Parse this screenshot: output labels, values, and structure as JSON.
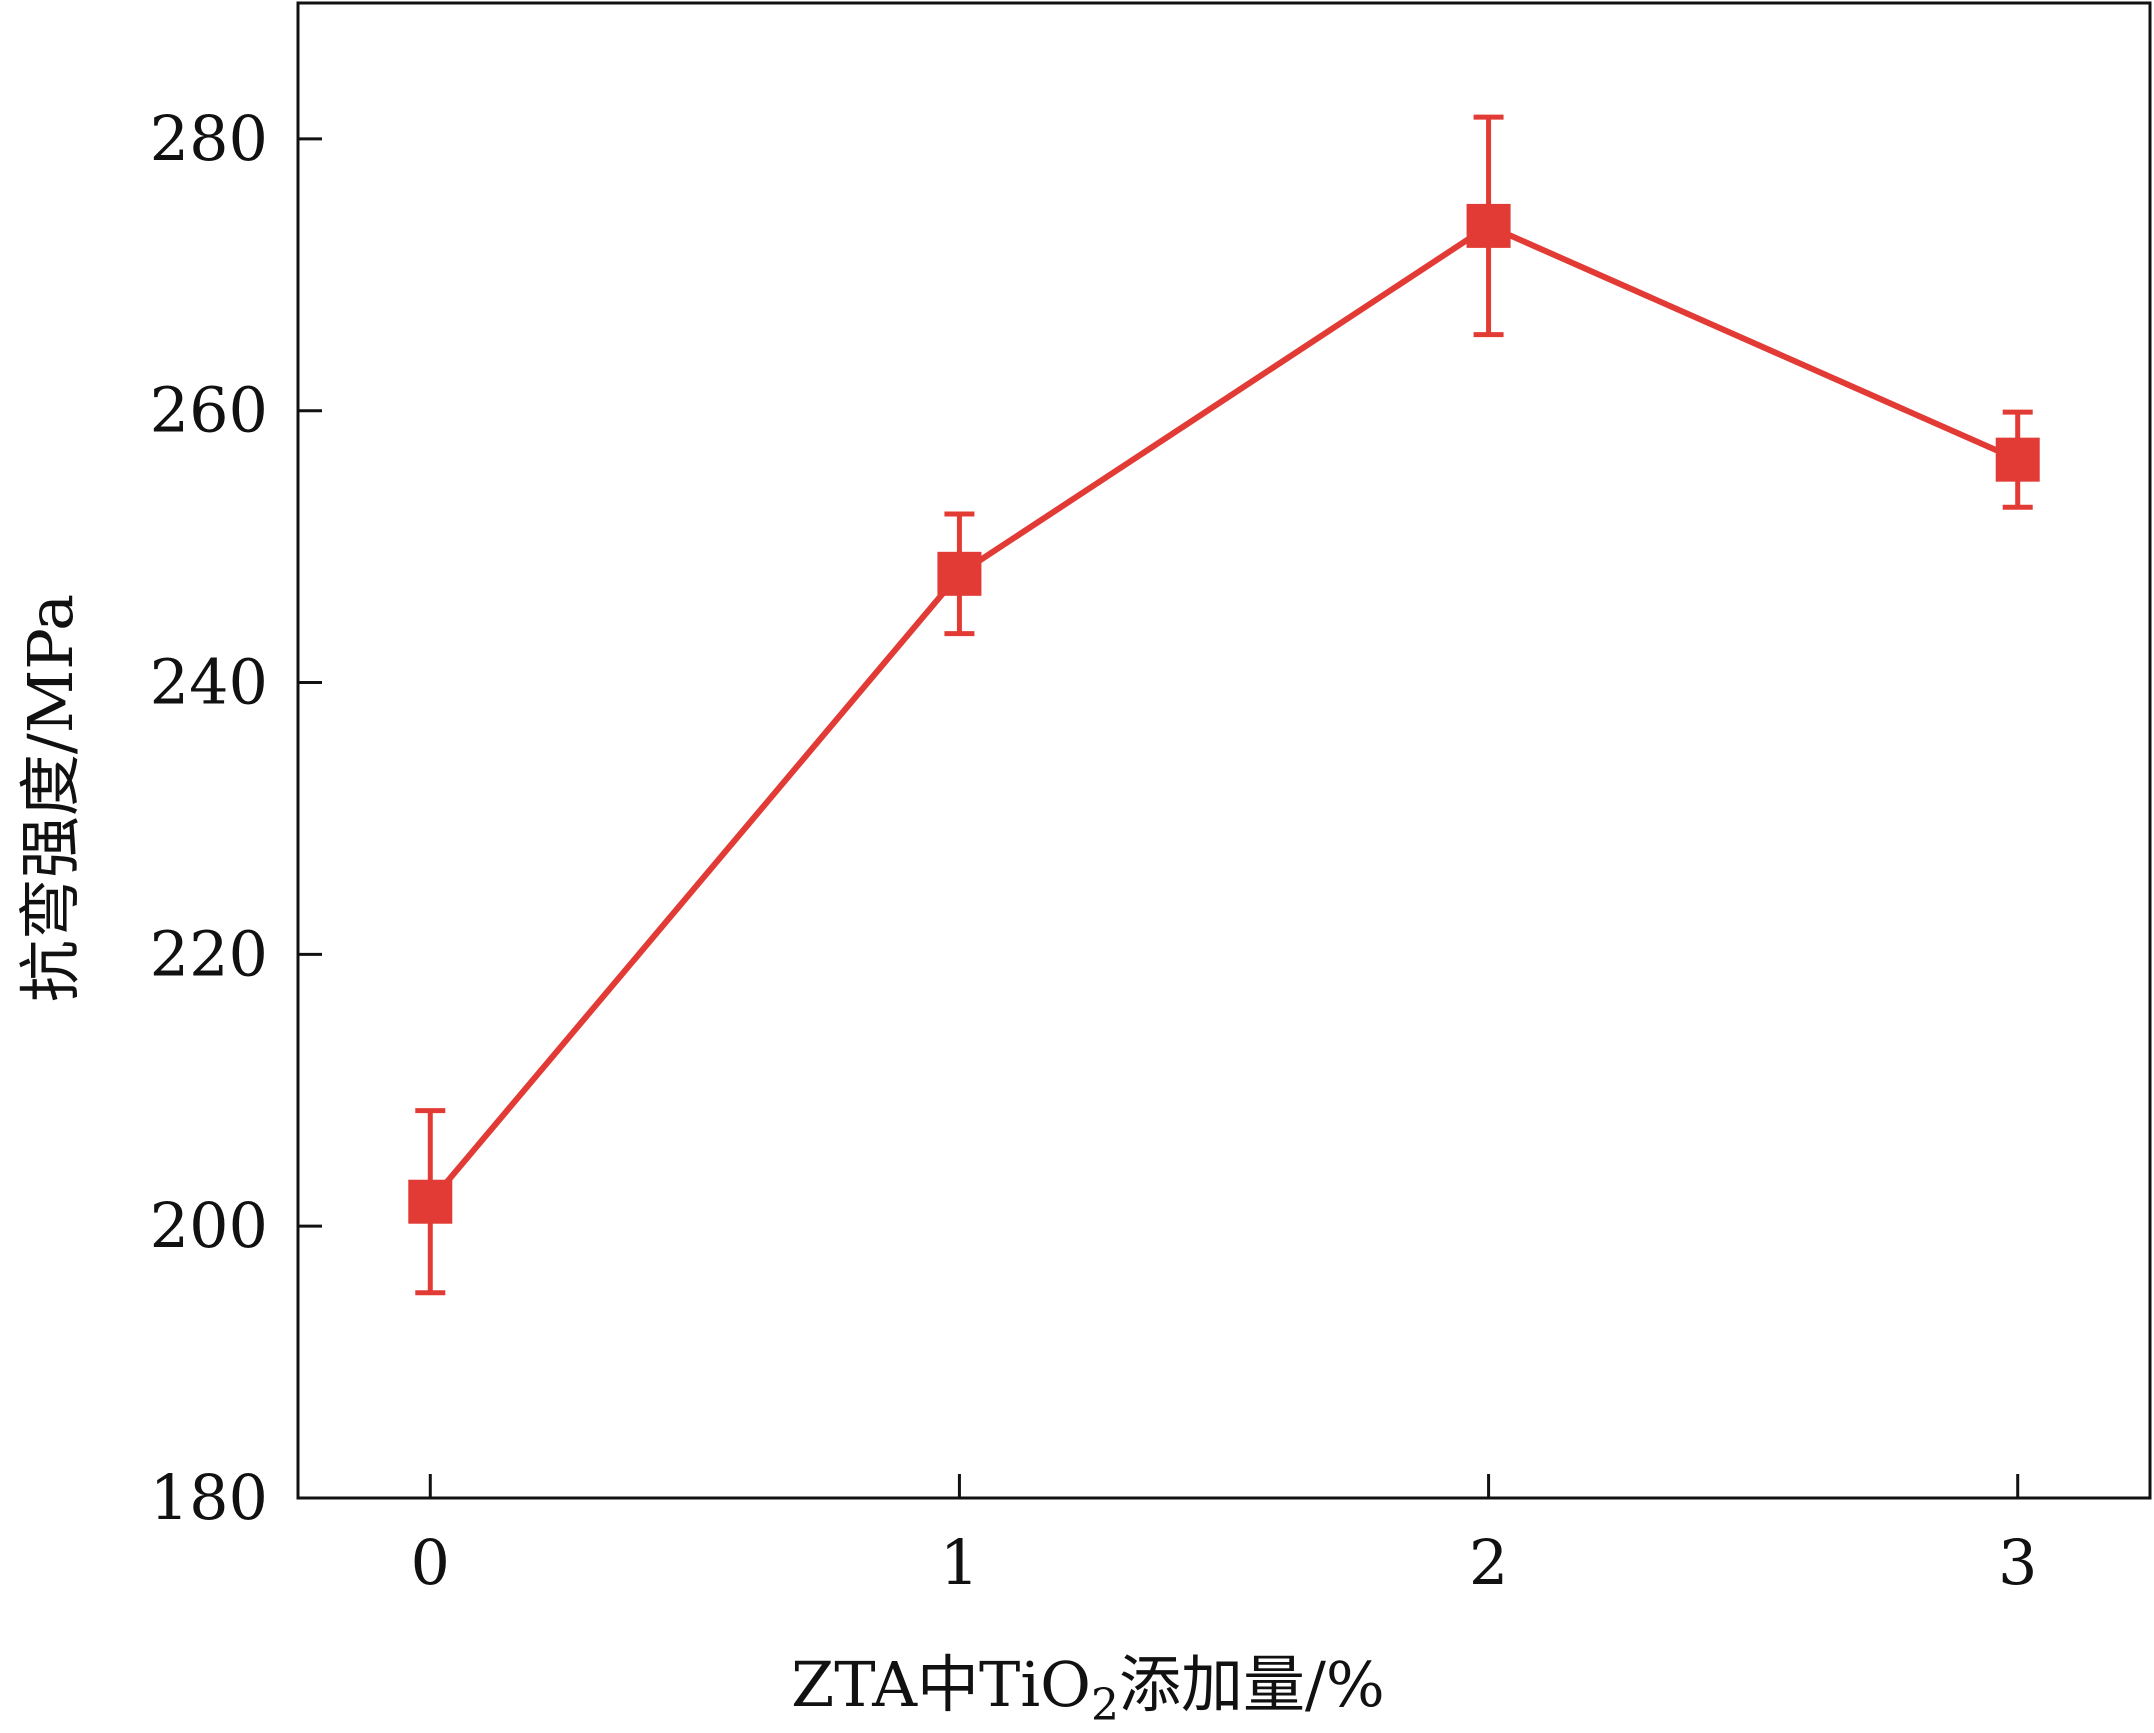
{
  "chart_data": {
    "type": "line",
    "xlabel_parts": {
      "main": "ZTA中TiO",
      "sub": "2",
      "rest": "添加量/%"
    },
    "ylabel": "抗弯强度/MPa",
    "x": [
      0,
      1,
      2,
      3
    ],
    "x_tick_labels": [
      "0",
      "1",
      "2",
      "3"
    ],
    "y_tick_labels": [
      "180",
      "200",
      "220",
      "240",
      "260",
      "280"
    ],
    "xlim": [
      -0.25,
      3.25
    ],
    "ylim": [
      180,
      290
    ],
    "y_ticks": [
      180,
      200,
      220,
      240,
      260,
      280
    ],
    "series": [
      {
        "values": [
          201.8,
          248.0,
          273.6,
          256.4
        ],
        "error": [
          6.7,
          4.4,
          8.0,
          3.5
        ],
        "color": "#e23b35",
        "marker": "square"
      }
    ],
    "grid": false,
    "legend": "none"
  }
}
